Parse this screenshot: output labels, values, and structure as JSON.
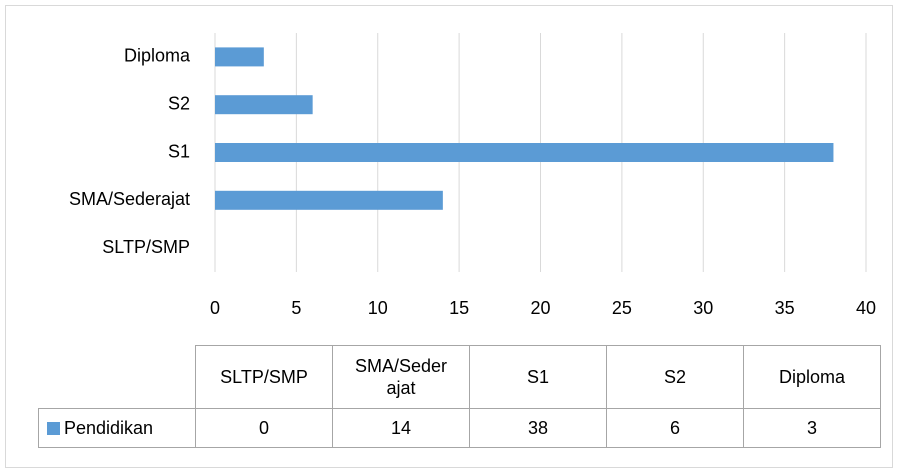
{
  "chart_data": {
    "type": "bar",
    "orientation": "horizontal",
    "categories": [
      "SLTP/SMP",
      "SMA/Sederajat",
      "S1",
      "S2",
      "Diploma"
    ],
    "series": [
      {
        "name": "Pendidikan",
        "color": "#5b9bd5",
        "values": [
          0,
          14,
          38,
          6,
          3
        ]
      }
    ],
    "xlim": [
      0,
      40
    ],
    "xticks": [
      0,
      5,
      10,
      15,
      20,
      25,
      30,
      35,
      40
    ],
    "grid": true,
    "data_table": true
  }
}
